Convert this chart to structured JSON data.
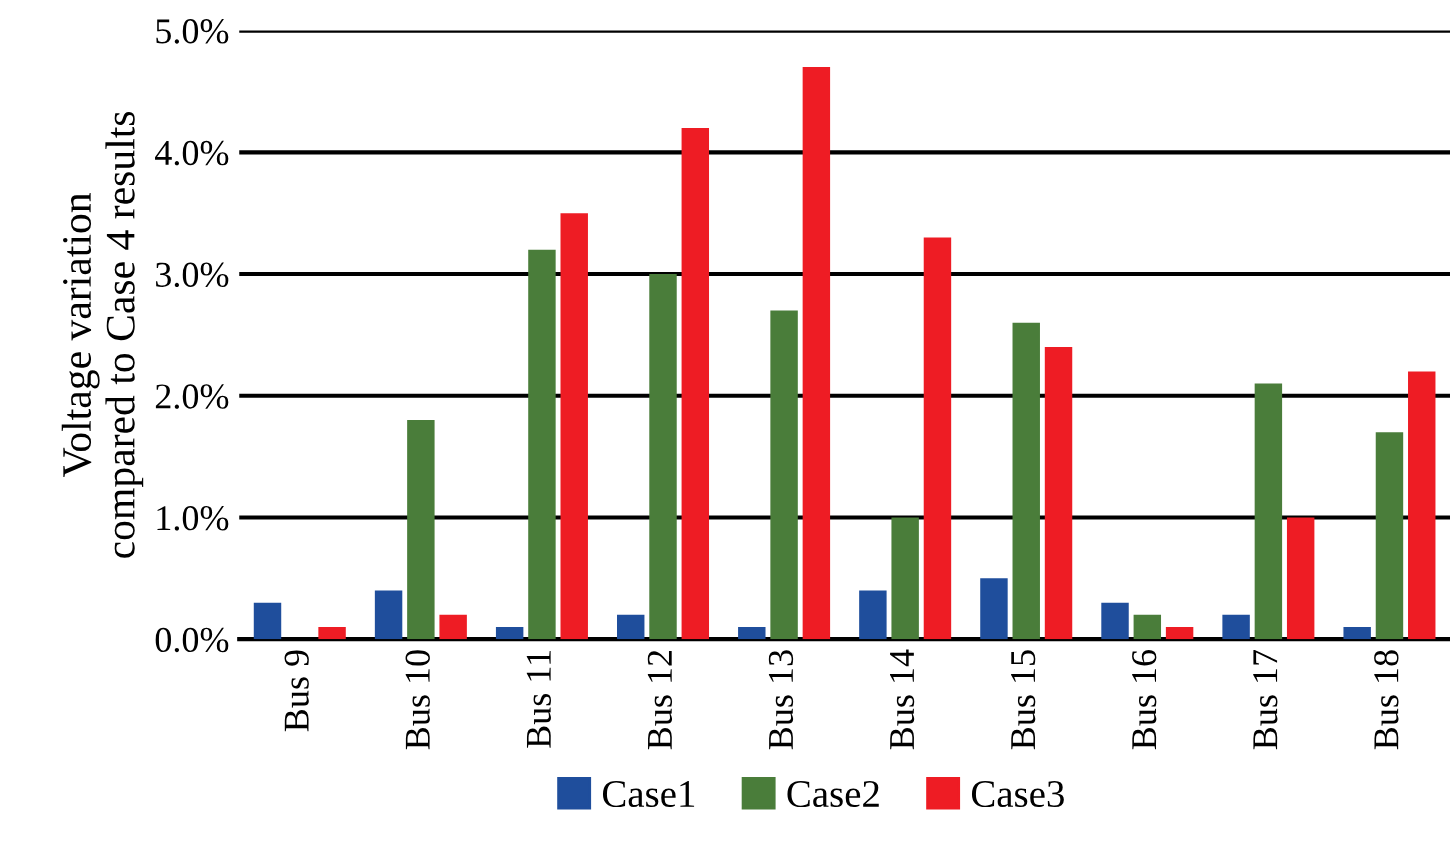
{
  "chart_data": {
    "type": "bar",
    "ylabel": "Voltage variation\ncompared to Case 4 results",
    "categories": [
      "Bus 9",
      "Bus 10",
      "Bus 11",
      "Bus 12",
      "Bus 13",
      "Bus 14",
      "Bus 15",
      "Bus 16",
      "Bus 17",
      "Bus 18"
    ],
    "series": [
      {
        "name": "Case1",
        "color": "#1f4e9c",
        "values": [
          0.3,
          0.4,
          0.1,
          0.2,
          0.1,
          0.4,
          0.5,
          0.3,
          0.2,
          0.1
        ]
      },
      {
        "name": "Case2",
        "color": "#4a7d3a",
        "values": [
          0,
          1.8,
          3.2,
          3.0,
          2.7,
          1.0,
          2.6,
          0.2,
          2.1,
          1.7
        ]
      },
      {
        "name": "Case3",
        "color": "#ee1c24",
        "values": [
          0.1,
          0.2,
          3.5,
          4.2,
          4.7,
          3.3,
          2.4,
          0.1,
          1.0,
          2.2
        ]
      }
    ],
    "ylim": [
      0,
      5
    ],
    "yticks": [
      {
        "value": 0,
        "label": "0.0%"
      },
      {
        "value": 1,
        "label": "1.0%"
      },
      {
        "value": 2,
        "label": "2.0%"
      },
      {
        "value": 3,
        "label": "3.0%"
      },
      {
        "value": 4,
        "label": "4.0%"
      },
      {
        "value": 5,
        "label": "5.0%"
      }
    ],
    "grid": "y",
    "legend": "bottom"
  }
}
